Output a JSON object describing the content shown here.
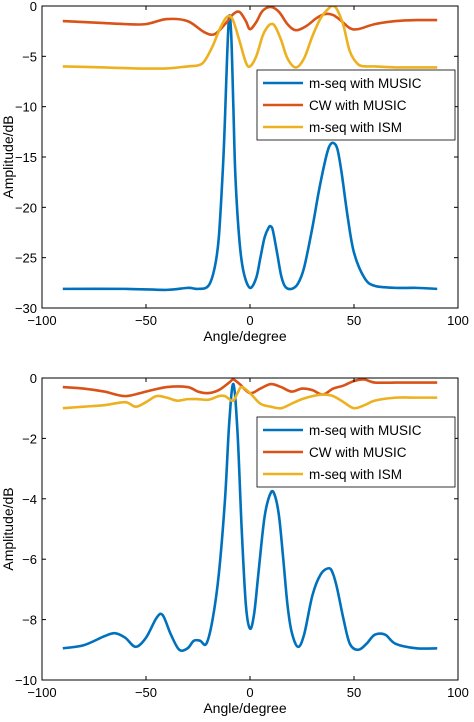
{
  "chart_data": [
    {
      "type": "line",
      "xlabel": "Angle/degree",
      "ylabel": "Amplitude/dB",
      "xlim": [
        -100,
        100
      ],
      "ylim": [
        -30,
        0
      ],
      "xticks": [
        -100,
        -50,
        0,
        50,
        100
      ],
      "yticks": [
        0,
        -5,
        -10,
        -15,
        -20,
        -25,
        -30
      ],
      "grid": false,
      "legend_position": "right",
      "series": [
        {
          "name": "m-seq with MUSIC",
          "color": "#0072BD",
          "x": [
            -90,
            -60,
            -40,
            -30,
            -25,
            -20,
            -17,
            -15,
            -13,
            -12,
            -11,
            -10,
            -9,
            -8,
            -7,
            -5,
            -3,
            0,
            3,
            5,
            7,
            9,
            10,
            11,
            13,
            15,
            17,
            20,
            23,
            26,
            30,
            33,
            36,
            38,
            40,
            42,
            44,
            47,
            50,
            55,
            60,
            70,
            80,
            90
          ],
          "y": [
            -28.1,
            -28.1,
            -28.2,
            -28.0,
            -28.1,
            -27.8,
            -26.0,
            -23.0,
            -16.0,
            -11.0,
            -5.0,
            -1.0,
            -3.0,
            -10.0,
            -17.0,
            -23.5,
            -26.5,
            -28.0,
            -27.0,
            -25.0,
            -23.0,
            -22.0,
            -21.9,
            -22.3,
            -24.5,
            -26.8,
            -27.9,
            -28.1,
            -27.6,
            -26.0,
            -22.0,
            -18.5,
            -15.5,
            -14.0,
            -13.6,
            -14.2,
            -16.5,
            -21.0,
            -24.5,
            -27.0,
            -27.8,
            -28.0,
            -28.0,
            -28.1
          ]
        },
        {
          "name": "CW with MUSIC",
          "color": "#D95319",
          "x": [
            -90,
            -80,
            -70,
            -60,
            -50,
            -40,
            -30,
            -22,
            -17,
            -12,
            -8,
            -5,
            -2,
            0,
            3,
            6,
            10,
            14,
            18,
            22,
            27,
            32,
            36,
            40,
            44,
            48,
            52,
            60,
            70,
            80,
            90
          ],
          "y": [
            -1.5,
            -1.6,
            -1.7,
            -1.8,
            -1.8,
            -1.3,
            -1.5,
            -2.6,
            -2.8,
            -1.8,
            -0.8,
            -0.6,
            -1.5,
            -2.3,
            -1.6,
            -0.5,
            -0.1,
            -0.6,
            -1.8,
            -2.4,
            -2.0,
            -1.2,
            -0.8,
            -0.9,
            -1.5,
            -2.2,
            -2.3,
            -1.8,
            -1.5,
            -1.4,
            -1.4
          ]
        },
        {
          "name": "m-seq with ISM",
          "color": "#EDB120",
          "x": [
            -90,
            -70,
            -55,
            -40,
            -30,
            -25,
            -22,
            -18,
            -15,
            -12,
            -10,
            -8,
            -5,
            -2,
            0,
            3,
            6,
            8,
            10,
            12,
            15,
            18,
            22,
            26,
            30,
            34,
            38,
            40,
            42,
            45,
            48,
            52,
            56,
            60,
            70,
            80,
            90
          ],
          "y": [
            -6.0,
            -6.1,
            -6.2,
            -6.2,
            -6.0,
            -5.9,
            -5.5,
            -4.0,
            -2.5,
            -1.3,
            -1.0,
            -1.5,
            -3.5,
            -5.6,
            -6.0,
            -5.0,
            -3.0,
            -2.2,
            -1.8,
            -2.0,
            -3.4,
            -5.2,
            -6.1,
            -5.2,
            -3.0,
            -1.2,
            -0.2,
            0.0,
            -0.4,
            -2.0,
            -4.5,
            -5.8,
            -6.0,
            -6.0,
            -6.1,
            -6.1,
            -6.1
          ]
        }
      ]
    },
    {
      "type": "line",
      "xlabel": "Angle/degree",
      "ylabel": "Amplitude/dB",
      "xlim": [
        -100,
        100
      ],
      "ylim": [
        -10,
        0
      ],
      "xticks": [
        -100,
        -50,
        0,
        50,
        100
      ],
      "yticks": [
        0,
        -2,
        -4,
        -6,
        -8,
        -10
      ],
      "grid": false,
      "legend_position": "top-right",
      "series": [
        {
          "name": "m-seq with MUSIC",
          "color": "#0072BD",
          "x": [
            -90,
            -80,
            -70,
            -65,
            -60,
            -55,
            -50,
            -45,
            -42,
            -38,
            -34,
            -30,
            -27,
            -24,
            -21,
            -18,
            -15,
            -12,
            -10,
            -8,
            -6,
            -4,
            -2,
            0,
            2,
            4,
            7,
            10,
            12,
            14,
            16,
            18,
            20,
            23,
            26,
            30,
            34,
            38,
            40,
            42,
            45,
            48,
            52,
            56,
            60,
            65,
            70,
            80,
            90
          ],
          "y": [
            -8.95,
            -8.85,
            -8.55,
            -8.45,
            -8.6,
            -8.9,
            -8.6,
            -7.95,
            -7.85,
            -8.5,
            -9.0,
            -8.95,
            -8.7,
            -8.7,
            -8.8,
            -8.0,
            -6.5,
            -4.0,
            -1.5,
            -0.2,
            -1.8,
            -5.0,
            -7.5,
            -8.3,
            -7.8,
            -6.5,
            -4.6,
            -3.8,
            -3.9,
            -4.6,
            -6.0,
            -7.5,
            -8.4,
            -8.9,
            -8.5,
            -7.2,
            -6.5,
            -6.3,
            -6.5,
            -7.0,
            -8.0,
            -8.8,
            -9.0,
            -8.8,
            -8.5,
            -8.5,
            -8.8,
            -8.95,
            -8.95
          ]
        },
        {
          "name": "CW with MUSIC",
          "color": "#D95319",
          "x": [
            -90,
            -80,
            -70,
            -60,
            -50,
            -40,
            -30,
            -25,
            -20,
            -15,
            -10,
            -8,
            -5,
            0,
            5,
            10,
            15,
            20,
            25,
            30,
            35,
            40,
            45,
            50,
            55,
            60,
            70,
            80,
            90
          ],
          "y": [
            -0.3,
            -0.35,
            -0.45,
            -0.6,
            -0.45,
            -0.3,
            -0.3,
            -0.45,
            -0.5,
            -0.4,
            -0.15,
            -0.05,
            -0.2,
            -0.5,
            -0.35,
            -0.2,
            -0.3,
            -0.45,
            -0.35,
            -0.4,
            -0.55,
            -0.35,
            -0.25,
            -0.1,
            -0.05,
            -0.15,
            -0.15,
            -0.15,
            -0.15
          ]
        },
        {
          "name": "m-seq with ISM",
          "color": "#EDB120",
          "x": [
            -90,
            -80,
            -70,
            -60,
            -55,
            -50,
            -45,
            -40,
            -35,
            -30,
            -25,
            -20,
            -15,
            -12,
            -10,
            -8,
            -6,
            -4,
            0,
            5,
            10,
            15,
            20,
            25,
            30,
            35,
            40,
            45,
            50,
            55,
            60,
            70,
            80,
            90
          ],
          "y": [
            -1.0,
            -0.95,
            -0.9,
            -0.8,
            -0.95,
            -0.8,
            -0.6,
            -0.65,
            -0.75,
            -0.7,
            -0.7,
            -0.72,
            -0.6,
            -0.6,
            -0.7,
            -0.75,
            -0.5,
            -0.3,
            -0.5,
            -0.85,
            -0.95,
            -1.0,
            -0.85,
            -0.7,
            -0.6,
            -0.55,
            -0.6,
            -0.8,
            -1.0,
            -0.9,
            -0.75,
            -0.65,
            -0.65,
            -0.65
          ]
        }
      ]
    }
  ]
}
